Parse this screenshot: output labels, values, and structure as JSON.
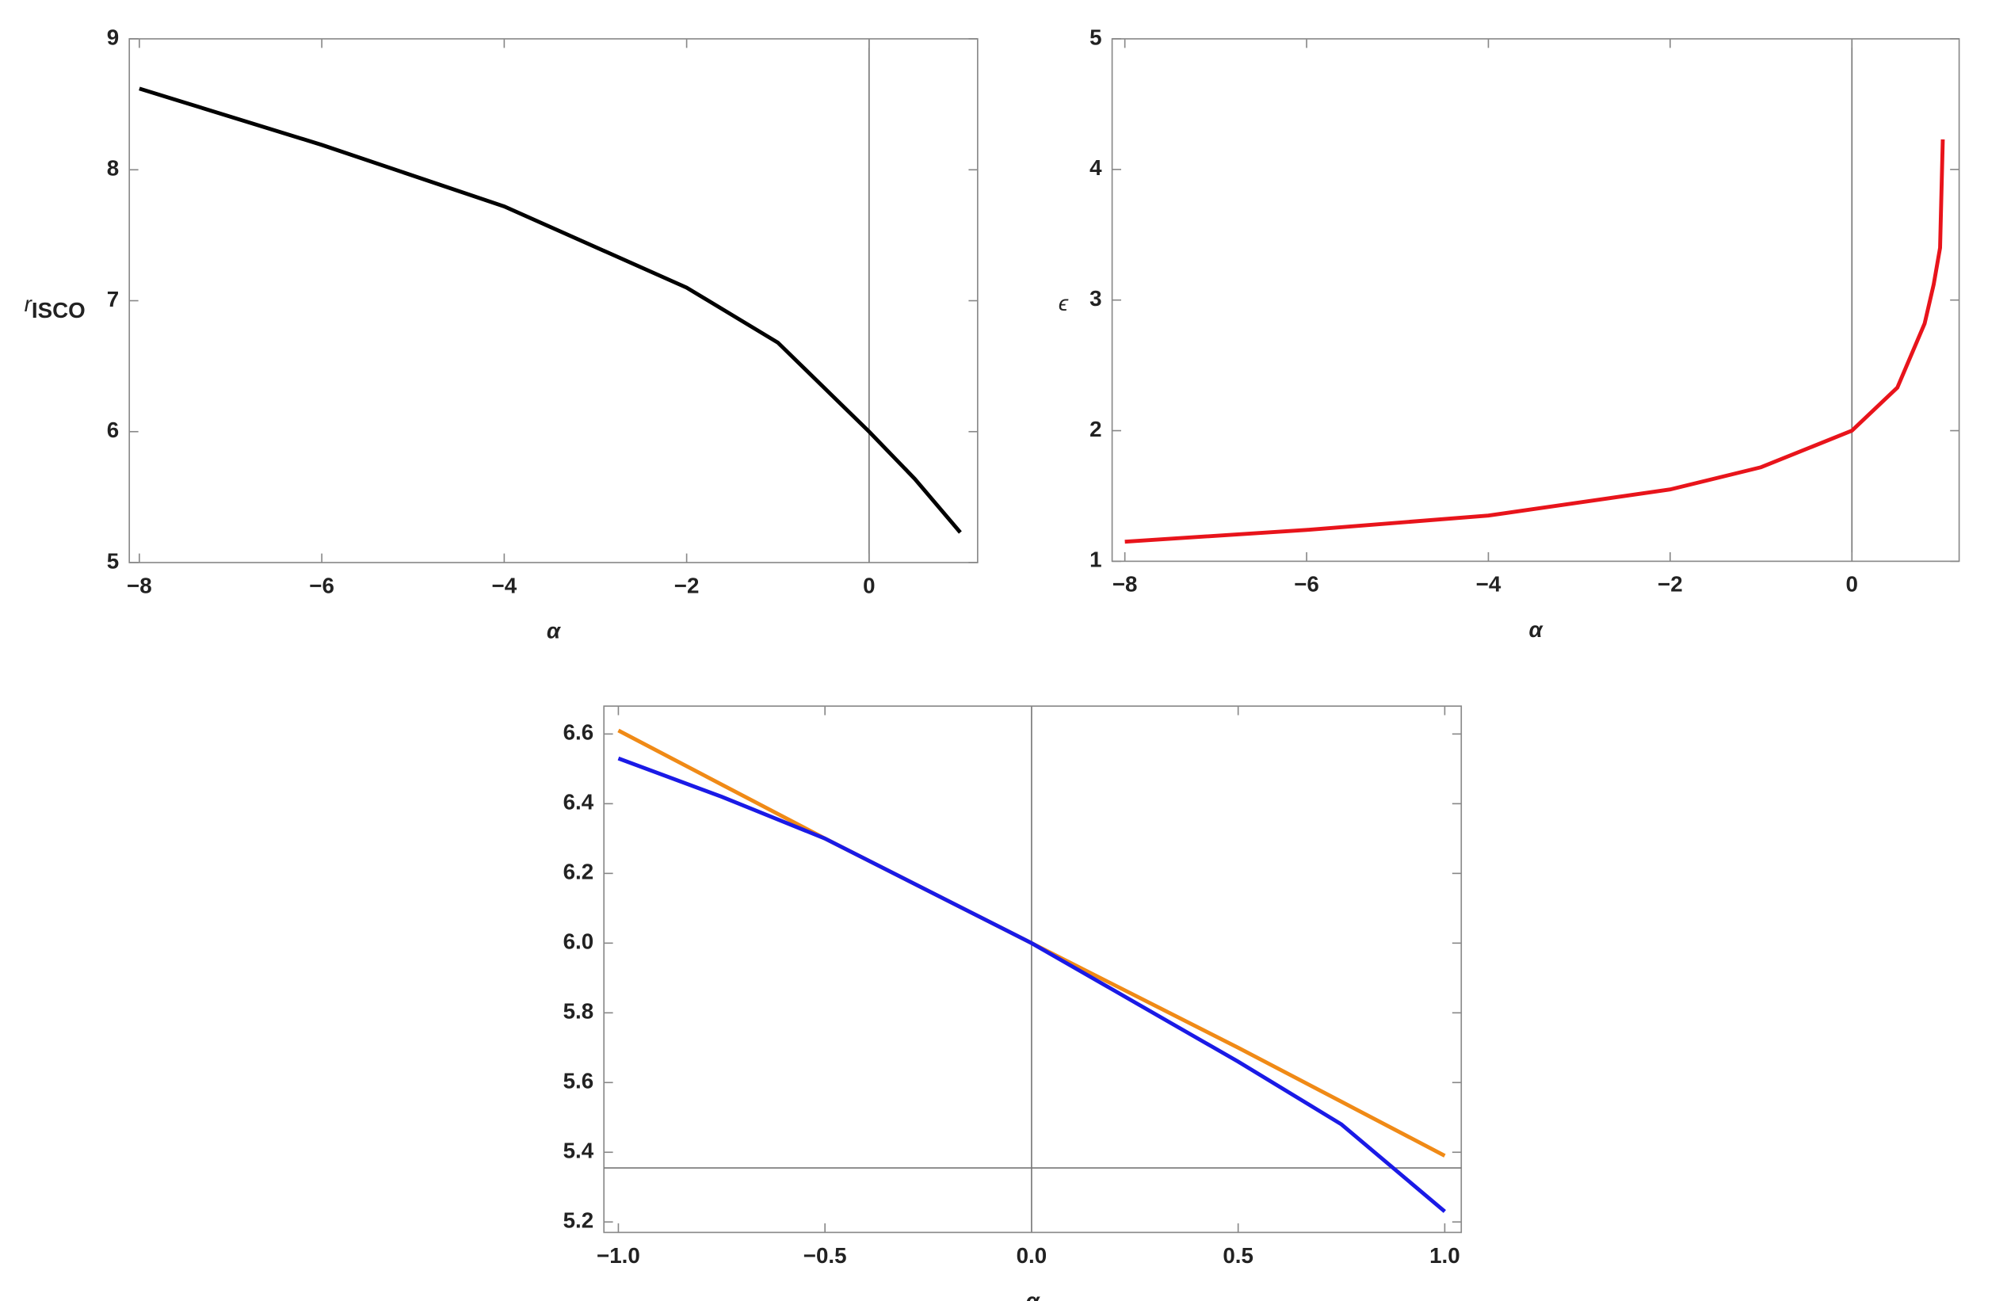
{
  "chart_data": [
    {
      "type": "line",
      "xlabel": "α",
      "ylabel": "r",
      "ylabel_sub": "ISCO",
      "x": [
        -8,
        -6,
        -4,
        -2,
        -1,
        0,
        0.5,
        1
      ],
      "series": [
        {
          "color": "#000000",
          "values": [
            8.62,
            8.19,
            7.72,
            7.1,
            6.68,
            6.0,
            5.64,
            5.23
          ]
        }
      ],
      "xlim": [
        -8.11,
        1.19
      ],
      "ylim": [
        5,
        9
      ],
      "xticks": [
        {
          "value": -8,
          "label": "−8"
        },
        {
          "value": -6,
          "label": "−6"
        },
        {
          "value": -4,
          "label": "−4"
        },
        {
          "value": -2,
          "label": "−2"
        },
        0
      ],
      "yticks": [
        5,
        6,
        7,
        8,
        9
      ]
    },
    {
      "type": "line",
      "xlabel": "α",
      "ylabel": "ϵ",
      "x": [
        -8,
        -6,
        -4,
        -2,
        -1,
        0,
        0.5,
        0.8,
        0.9,
        0.97,
        1
      ],
      "series": [
        {
          "color": "#e8141b",
          "values": [
            1.15,
            1.24,
            1.35,
            1.55,
            1.72,
            2.0,
            2.33,
            2.82,
            3.12,
            3.4,
            4.23
          ]
        }
      ],
      "xlim": [
        -8.14,
        1.18
      ],
      "ylim": [
        1,
        5
      ],
      "xticks": [
        {
          "value": -8,
          "label": "−8"
        },
        {
          "value": -6,
          "label": "−6"
        },
        {
          "value": -4,
          "label": "−4"
        },
        {
          "value": -2,
          "label": "−2"
        },
        0
      ],
      "yticks": [
        1,
        2,
        3,
        4,
        5
      ]
    },
    {
      "type": "line",
      "xlabel": "α",
      "x": [
        -1,
        -0.75,
        -0.5,
        0,
        0.5,
        0.75,
        1
      ],
      "series": [
        {
          "color": "#f08a16",
          "values": [
            6.61,
            6.455,
            6.3,
            6.0,
            5.7,
            5.545,
            5.39
          ]
        },
        {
          "color": "#1a1ae6",
          "values": [
            6.53,
            6.42,
            6.3,
            6.0,
            5.66,
            5.48,
            5.23
          ]
        }
      ],
      "hline": 5.355,
      "xlim": [
        -1.035,
        1.04
      ],
      "ylim": [
        5.17,
        6.68
      ],
      "xticks": [
        {
          "value": -1,
          "label": "−1.0"
        },
        {
          "value": -0.5,
          "label": "−0.5"
        },
        {
          "value": 0,
          "label": "0.0"
        },
        0.5,
        {
          "value": 1,
          "label": "1.0"
        }
      ],
      "yticks": [
        5.2,
        5.4,
        5.6,
        5.8,
        {
          "value": 6,
          "label": "6.0"
        },
        6.2,
        6.4,
        6.6
      ]
    }
  ]
}
